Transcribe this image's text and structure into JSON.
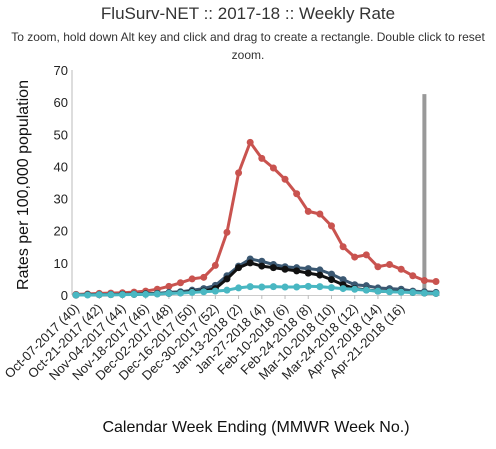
{
  "chart_data": {
    "type": "line",
    "title": "FluSurv-NET :: 2017-18 :: Weekly Rate",
    "subtitle": "To zoom, hold down Alt key and click and drag to create a rectangle. Double click to reset zoom.",
    "xlabel": "Calendar Week Ending (MMWR Week No.)",
    "ylabel": "Rates per 100,000 population",
    "ylim": [
      0,
      70
    ],
    "yticks": [
      0,
      10,
      20,
      30,
      40,
      50,
      60,
      70
    ],
    "grid": false,
    "legend": "none",
    "x_tick_labels": [
      "Oct-07-2017 (40)",
      "Oct-21-2017 (42)",
      "Nov-04-2017 (44)",
      "Nov-18-2017 (46)",
      "Dec-02-2017 (48)",
      "Dec-16-2017 (50)",
      "Dec-30-2017 (52)",
      "Jan-13-2018 (2)",
      "Jan-27-2018 (4)",
      "Feb-10-2018 (6)",
      "Feb-24-2018 (8)",
      "Mar-10-2018 (10)",
      "Mar-24-2018 (12)",
      "Apr-07-2018 (14)",
      "Apr-21-2018 (16)"
    ],
    "highlight_bar": {
      "week_index": 30,
      "value": 62.5,
      "color": "#999999"
    },
    "series": [
      {
        "color": "#c9534f",
        "values": [
          0.2,
          0.3,
          0.5,
          0.6,
          0.7,
          0.9,
          1.2,
          1.8,
          2.7,
          3.8,
          5.0,
          5.5,
          9.2,
          19.5,
          38.0,
          47.5,
          42.5,
          39.5,
          36.0,
          31.5,
          26.0,
          25.2,
          21.5,
          15.0,
          11.8,
          12.5,
          8.8,
          9.5,
          8.0,
          6.0,
          4.5,
          4.2
        ]
      },
      {
        "color": "#3b5872",
        "values": [
          0.0,
          0.1,
          0.1,
          0.2,
          0.2,
          0.3,
          0.4,
          0.5,
          0.8,
          1.0,
          1.5,
          2.0,
          3.0,
          6.0,
          9.0,
          11.2,
          10.5,
          9.5,
          8.8,
          8.5,
          8.2,
          7.8,
          6.5,
          4.8,
          3.2,
          2.9,
          2.2,
          2.0,
          1.8,
          1.2,
          1.0,
          0.8
        ]
      },
      {
        "color": "#111111",
        "values": [
          0.0,
          0.1,
          0.1,
          0.1,
          0.2,
          0.2,
          0.3,
          0.4,
          0.5,
          0.7,
          1.0,
          1.2,
          2.0,
          5.0,
          8.5,
          10.0,
          9.0,
          8.5,
          8.0,
          7.5,
          6.8,
          6.2,
          4.8,
          3.2,
          2.0,
          1.6,
          1.2,
          1.1,
          1.0,
          0.8,
          0.6,
          0.5
        ]
      },
      {
        "color": "#49b7c2",
        "values": [
          0.0,
          0.0,
          0.1,
          0.1,
          0.1,
          0.2,
          0.2,
          0.3,
          0.5,
          0.6,
          0.8,
          1.0,
          1.2,
          1.5,
          2.2,
          2.6,
          2.5,
          2.6,
          2.5,
          2.5,
          2.7,
          2.6,
          2.3,
          2.0,
          1.8,
          1.5,
          1.2,
          1.0,
          0.9,
          0.8,
          0.6,
          0.5
        ]
      }
    ]
  }
}
